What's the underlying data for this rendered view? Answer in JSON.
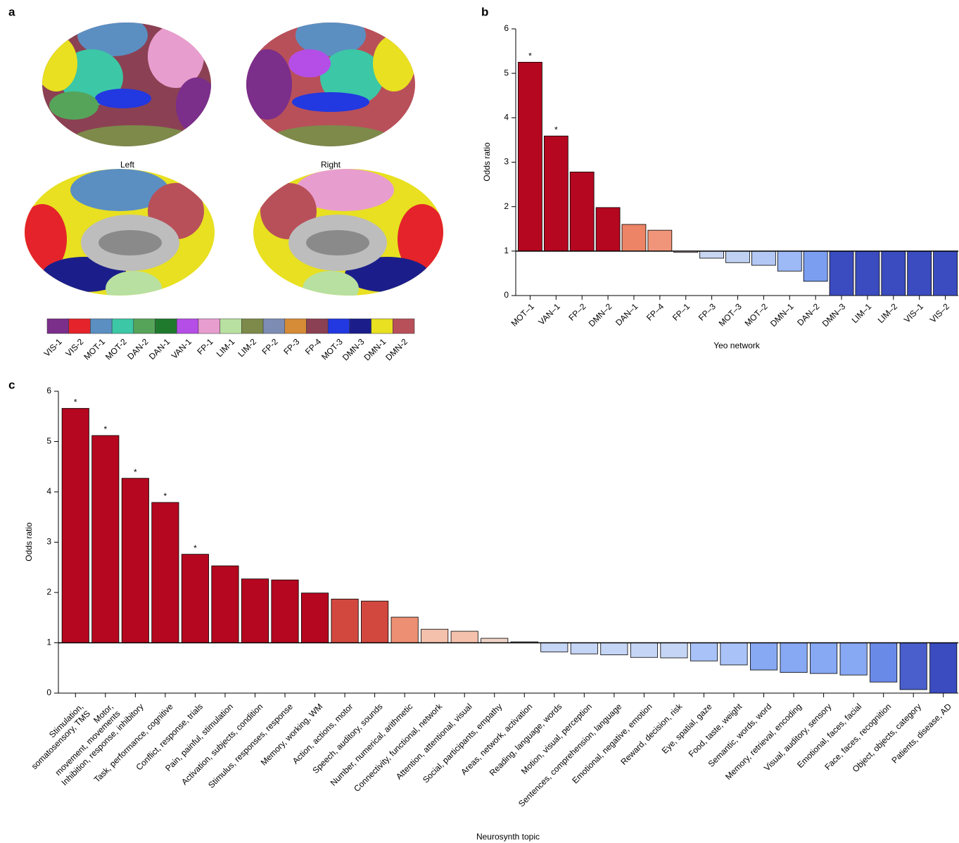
{
  "brain_panel": {
    "panel_label": "a",
    "views": [
      "Left",
      "Right"
    ],
    "networks": [
      {
        "name": "VIS-1",
        "color": "#7b2e8a"
      },
      {
        "name": "VIS-2",
        "color": "#e4242a"
      },
      {
        "name": "MOT-1",
        "color": "#5b8fc2"
      },
      {
        "name": "MOT-2",
        "color": "#3cc7a6"
      },
      {
        "name": "DAN-2",
        "color": "#56a45a"
      },
      {
        "name": "DAN-1",
        "color": "#1f7a2e"
      },
      {
        "name": "VAN-1",
        "color": "#b54ee6"
      },
      {
        "name": "FP-1",
        "color": "#e89dcf"
      },
      {
        "name": "LIM-1",
        "color": "#b8e0a0"
      },
      {
        "name": "LIM-2",
        "color": "#7d8a4a"
      },
      {
        "name": "FP-2",
        "color": "#7d8cb3"
      },
      {
        "name": "FP-3",
        "color": "#d68b36"
      },
      {
        "name": "FP-4",
        "color": "#8b4153"
      },
      {
        "name": "MOT-3",
        "color": "#2238e0"
      },
      {
        "name": "DMN-3",
        "color": "#1b1e8a"
      },
      {
        "name": "DMN-1",
        "color": "#e8e020"
      },
      {
        "name": "DMN-2",
        "color": "#b8505a"
      }
    ]
  },
  "chart_data": [
    {
      "type": "bar",
      "panel_label": "b",
      "x_label": "Yeo network",
      "y_label": "Odds ratio",
      "categories": [
        "MOT–1",
        "VAN–1",
        "FP–2",
        "DMN–2",
        "DAN–1",
        "FP–4",
        "FP–1",
        "FP–3",
        "MOT–3",
        "MOT–2",
        "DMN–1",
        "DAN–2",
        "DMN–3",
        "LIM–1",
        "LIM–2",
        "VIS–1",
        "VIS–2"
      ],
      "category_colors": [
        "#5b8fc2",
        "#b54ee6",
        "#7d8cb3",
        "#b8505a",
        "#1f7a2e",
        "#8b4153",
        "#e89dcf",
        "#d68b36",
        "#2238e0",
        "#3cc7a6",
        "#e8e020",
        "#56a45a",
        "#1b1e8a",
        "#b8e0a0",
        "#7d8a4a",
        "#7b2e8a",
        "#e4242a"
      ],
      "values": [
        5.25,
        3.59,
        2.78,
        1.98,
        1.6,
        1.47,
        0.97,
        0.84,
        0.74,
        0.68,
        0.55,
        0.32,
        0,
        0,
        0,
        0,
        0
      ],
      "colors": [
        "#b5071f",
        "#b5071f",
        "#b5071f",
        "#b5071f",
        "#ec8465",
        "#f0957a",
        "#f3e6e0",
        "#c8d6f2",
        "#bfd0f3",
        "#b3c8f4",
        "#9dbaf6",
        "#7b9ef0",
        "#3b4cc0",
        "#3b4cc0",
        "#3b4cc0",
        "#3b4cc0",
        "#3b4cc0"
      ],
      "markers": [
        "*",
        "*",
        null,
        null,
        null,
        null,
        null,
        null,
        null,
        null,
        null,
        null,
        null,
        null,
        null,
        null,
        null
      ],
      "baseline": 1,
      "ylim": [
        0,
        6
      ],
      "yticks": [
        0,
        1,
        2,
        3,
        4,
        5,
        6
      ]
    },
    {
      "type": "bar",
      "panel_label": "c",
      "x_label": "Neurosynth topic",
      "y_label": "Odds ratio",
      "categories": [
        "Stimulation,\nsomatosensory, TMS",
        "Motor,\nmovement, movements",
        "Inhibition, response, inhibitory",
        "Task, performance, cognitive",
        "Conflict, response, trials",
        "Pain, painful, stimulation",
        "Activation, subjects, condition",
        "Stimulus, responses, response",
        "Memory, working, WM",
        "Action, actions, motor",
        "Speech, auditory, sounds",
        "Number, numerical, arithmetic",
        "Connectivity, functional, network",
        "Attention, attentional, visual",
        "Social, participants, empathy",
        "Areas, network, activation",
        "Reading, language, words",
        "Motion, visual, perception",
        "Sentences, comprehension, language",
        "Emotional, negative, emotion",
        "Reward, decision, risk",
        "Eye, spatial, gaze",
        "Food, taste, weight",
        "Semantic, words, word",
        "Memory, retrieval, encoding",
        "Visual, auditory, sensory",
        "Emotional, faces, facial",
        "Face, faces, recognition",
        "Object, objects, category",
        "Patients, disease, AD"
      ],
      "values": [
        5.66,
        5.12,
        4.27,
        3.79,
        2.76,
        2.53,
        2.27,
        2.25,
        1.99,
        1.87,
        1.83,
        1.51,
        1.27,
        1.23,
        1.09,
        1.02,
        0.82,
        0.78,
        0.76,
        0.71,
        0.7,
        0.64,
        0.56,
        0.46,
        0.41,
        0.39,
        0.36,
        0.22,
        0.07,
        0
      ],
      "colors": [
        "#b5071f",
        "#b5071f",
        "#b5071f",
        "#b5071f",
        "#b5071f",
        "#b5071f",
        "#b5071f",
        "#b5071f",
        "#b5071f",
        "#d2483f",
        "#d2483f",
        "#ec8f72",
        "#f4c1ac",
        "#f4c1ac",
        "#eed3c6",
        "#f2f0ee",
        "#c5d5f5",
        "#c5d5f5",
        "#c5d5f5",
        "#c5d5f5",
        "#c5d5f5",
        "#a9c3f8",
        "#a9c3f8",
        "#87a8f3",
        "#87a8f3",
        "#87a8f3",
        "#87a8f3",
        "#6a8ae8",
        "#4a5fcc",
        "#3b4cc0"
      ],
      "markers": [
        "*",
        "*",
        "*",
        "*",
        "*",
        null,
        null,
        null,
        null,
        null,
        null,
        null,
        null,
        null,
        null,
        null,
        null,
        null,
        null,
        null,
        null,
        null,
        null,
        null,
        null,
        null,
        null,
        null,
        null,
        null
      ],
      "baseline": 1,
      "ylim": [
        0,
        6
      ],
      "yticks": [
        0,
        1,
        2,
        3,
        4,
        5,
        6
      ]
    }
  ]
}
